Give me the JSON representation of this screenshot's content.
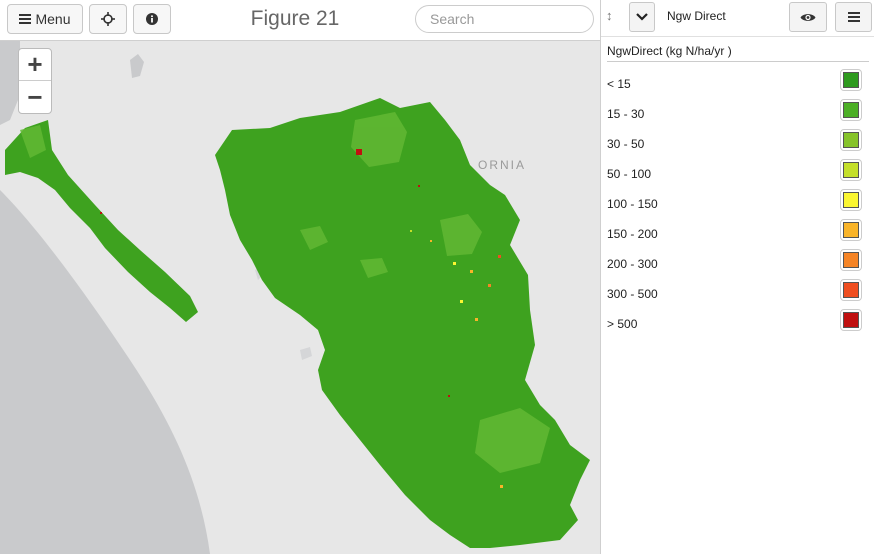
{
  "toolbar": {
    "menu_label": "Menu",
    "title": "Figure 21",
    "search_placeholder": "Search"
  },
  "map": {
    "zoom_in": "+",
    "zoom_out": "−",
    "partial_label": "ORNIA",
    "land_color": "#e7e7e7",
    "ocean_color": "#c9cacc",
    "fill_color": "#3ea21f"
  },
  "panel": {
    "layer_name": "Ngw Direct",
    "legend_title": "NgwDirect (kg N/ha/yr )",
    "legend": [
      {
        "label": "< 15",
        "color": "#2e9a1e"
      },
      {
        "label": "15 - 30",
        "color": "#4caf26"
      },
      {
        "label": "30 - 50",
        "color": "#86c32a"
      },
      {
        "label": "50 - 100",
        "color": "#c4df2a"
      },
      {
        "label": "100 - 150",
        "color": "#fbf631"
      },
      {
        "label": "150 - 200",
        "color": "#f9b429"
      },
      {
        "label": "200 - 300",
        "color": "#f58426"
      },
      {
        "label": "300 - 500",
        "color": "#ef4e20"
      },
      {
        "label": "> 500",
        "color": "#c01010"
      }
    ]
  }
}
